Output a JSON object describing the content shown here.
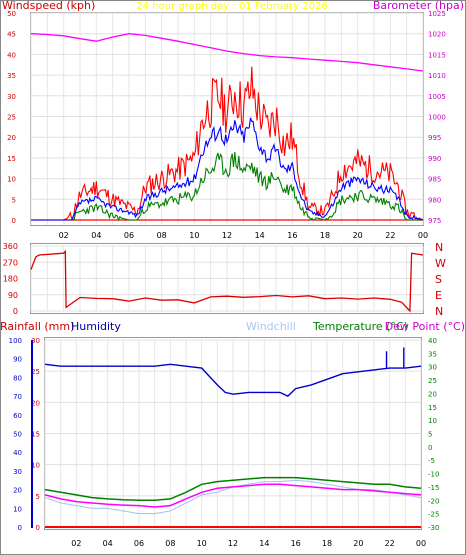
{
  "colors": {
    "wind_high": "#ff0000",
    "wind_avg": "#008000",
    "wind_overall": "#0000ff",
    "barometer": "#ff00ff",
    "direction": "#dd0000",
    "humidity": "#0000cc",
    "temperature": "#008000",
    "dewpoint": "#ff00ff",
    "windchill": "#a8c8f0",
    "rainfall": "#ff0000",
    "title": "#ffff00"
  },
  "chart_data": [
    {
      "type": "line",
      "title": "24 hour graph day : 01 February 2026",
      "left_label": "Windspeed (kph)",
      "right_label": "Barometer (hpa)",
      "x_ticks": [
        "02",
        "04",
        "06",
        "08",
        "10",
        "12",
        "14",
        "16",
        "18",
        "20",
        "22",
        "00"
      ],
      "y_left_ticks": [
        "0",
        "5",
        "10",
        "15",
        "20",
        "25",
        "30",
        "35",
        "40",
        "45",
        "50"
      ],
      "y_left_range": [
        0,
        50
      ],
      "y_right_ticks": [
        "975",
        "980",
        "985",
        "990",
        "995",
        "1000",
        "1005",
        "1010",
        "1015",
        "1020",
        "1025"
      ],
      "y_right_range": [
        975,
        1025
      ],
      "grid": true,
      "series": [
        {
          "key": "gust",
          "x": [
            0,
            1,
            2,
            2.5,
            3,
            4,
            5,
            6,
            6.5,
            7,
            8,
            9,
            10,
            10.5,
            11,
            11.5,
            12,
            12.5,
            13,
            13.5,
            14,
            14.5,
            15,
            15.5,
            16,
            16.5,
            17,
            18,
            18.5,
            19,
            20,
            21,
            22,
            22.5,
            23,
            24
          ],
          "values": [
            0,
            0,
            0,
            1,
            6,
            8,
            5,
            3,
            2,
            8,
            10,
            12,
            15,
            24,
            28,
            30,
            26,
            31,
            27,
            32,
            26,
            22,
            25,
            18,
            20,
            10,
            3,
            2,
            6,
            12,
            14,
            12,
            11,
            8,
            2,
            0
          ]
        },
        {
          "key": "avg",
          "x": [
            0,
            1,
            2,
            2.5,
            3,
            4,
            5,
            6,
            6.5,
            7,
            8,
            9,
            10,
            10.5,
            11,
            11.5,
            12,
            12.5,
            13,
            13.5,
            14,
            14.5,
            15,
            15.5,
            16,
            16.5,
            17,
            18,
            18.5,
            19,
            20,
            21,
            22,
            22.5,
            23,
            24
          ],
          "values": [
            0,
            0,
            0,
            0,
            2,
            3,
            1,
            0,
            0,
            3,
            4,
            5,
            6,
            10,
            12,
            14,
            12,
            15,
            12,
            13,
            10,
            9,
            11,
            7,
            8,
            3,
            1,
            0,
            2,
            5,
            6,
            5,
            4,
            3,
            0,
            0
          ]
        },
        {
          "key": "overall",
          "x": [
            0,
            1,
            2,
            2.5,
            3,
            4,
            5,
            6,
            6.5,
            7,
            8,
            9,
            10,
            10.5,
            11,
            11.5,
            12,
            12.5,
            13,
            13.5,
            14,
            14.5,
            15,
            15.5,
            16,
            16.5,
            17,
            18,
            18.5,
            19,
            20,
            21,
            22,
            22.5,
            23,
            24
          ],
          "values": [
            0,
            0,
            0,
            0,
            4,
            5,
            3,
            2,
            1,
            5,
            7,
            8,
            10,
            17,
            20,
            22,
            19,
            23,
            20,
            24,
            18,
            15,
            17,
            12,
            13,
            6,
            2,
            1,
            4,
            8,
            10,
            8,
            7,
            5,
            1,
            0
          ]
        },
        {
          "key": "barometer",
          "x": [
            0,
            1,
            2,
            3,
            4,
            5,
            6,
            7,
            8,
            9,
            10,
            11,
            12,
            13,
            14,
            15,
            16,
            17,
            18,
            19,
            20,
            21,
            22,
            23,
            24
          ],
          "values": [
            1020,
            1019.8,
            1019.5,
            1018.8,
            1018.2,
            1019.2,
            1020,
            1019.6,
            1018.9,
            1018.2,
            1017.4,
            1016.6,
            1015.8,
            1015.2,
            1014.7,
            1014.4,
            1014.2,
            1013.9,
            1013.6,
            1013.3,
            1013,
            1012.5,
            1012,
            1011.5,
            1011
          ]
        }
      ]
    },
    {
      "type": "line",
      "y_ticks": [
        "0",
        "90",
        "180",
        "270",
        "360"
      ],
      "y_range": [
        0,
        360
      ],
      "compass": [
        "N",
        "W",
        "S",
        "E",
        "N"
      ],
      "series": [
        {
          "key": "direction",
          "x": [
            0,
            0.3,
            0.5,
            2,
            2.1,
            2.15,
            3,
            4,
            5,
            6,
            7,
            8,
            9,
            10,
            11,
            12,
            13,
            14,
            15,
            16,
            17,
            18,
            19,
            20,
            21,
            22,
            22.7,
            23.2,
            23.3,
            24
          ],
          "values": [
            230,
            300,
            310,
            320,
            330,
            20,
            75,
            70,
            68,
            55,
            72,
            60,
            62,
            45,
            78,
            82,
            76,
            80,
            86,
            78,
            84,
            68,
            72,
            66,
            72,
            65,
            48,
            0,
            320,
            310
          ]
        }
      ]
    },
    {
      "type": "line",
      "labels": {
        "rainfall": "Rainfall (mm)",
        "humidity": "Humidity",
        "windchill": "Windchill",
        "temperature": "Temperature (°C)",
        "dewpoint": "Dew Point (°C)"
      },
      "x_ticks": [
        "02",
        "04",
        "06",
        "08",
        "10",
        "12",
        "14",
        "16",
        "18",
        "20",
        "22",
        "00"
      ],
      "humidity_ticks": [
        "0",
        "10",
        "20",
        "30",
        "40",
        "50",
        "60",
        "70",
        "80",
        "90",
        "100"
      ],
      "humidity_range": [
        0,
        100
      ],
      "rain_ticks": [
        "0",
        "5",
        "10",
        "15",
        "20",
        "25",
        "30"
      ],
      "rain_range": [
        0,
        30
      ],
      "temp_ticks": [
        "40",
        "35",
        "30",
        "25",
        "20",
        "15",
        "10",
        "5",
        "0",
        "-5",
        "-10",
        "-15",
        "-20",
        "-25",
        "-30"
      ],
      "temp_range": [
        -30,
        40
      ],
      "series": [
        {
          "key": "humidity",
          "x": [
            0,
            1,
            2,
            3,
            4,
            5,
            6,
            7,
            8,
            9,
            10,
            11,
            11.5,
            12,
            13,
            14,
            15,
            15.5,
            16,
            17,
            18,
            19,
            20,
            21,
            22,
            23,
            24
          ],
          "values": [
            87,
            86,
            86,
            86,
            86,
            86,
            86,
            86,
            87,
            86,
            85,
            76,
            72,
            71,
            72,
            72,
            72,
            70,
            74,
            76,
            79,
            82,
            83,
            84,
            85,
            85,
            86
          ]
        },
        {
          "key": "temperature",
          "x": [
            0,
            1,
            2,
            3,
            4,
            5,
            6,
            7,
            8,
            9,
            10,
            11,
            12,
            13,
            14,
            15,
            16,
            17,
            18,
            19,
            20,
            21,
            22,
            23,
            24
          ],
          "values": [
            -16,
            -17,
            -18,
            -19,
            -19.5,
            -19.8,
            -20,
            -20,
            -19.5,
            -17,
            -14,
            -13,
            -12.5,
            -12,
            -11.5,
            -11.5,
            -11.5,
            -12,
            -12.5,
            -13,
            -13.5,
            -14,
            -14,
            -15,
            -15.5
          ]
        },
        {
          "key": "dewpoint",
          "x": [
            0,
            1,
            2,
            3,
            4,
            5,
            6,
            7,
            8,
            9,
            10,
            11,
            12,
            13,
            14,
            15,
            16,
            17,
            18,
            19,
            20,
            21,
            22,
            23,
            24
          ],
          "values": [
            -18,
            -19.5,
            -20.5,
            -21,
            -21.5,
            -21.8,
            -22,
            -22.5,
            -22,
            -19.5,
            -17,
            -15.5,
            -15,
            -14.5,
            -14,
            -14,
            -14.5,
            -15,
            -15.5,
            -16,
            -16,
            -16.5,
            -17,
            -17.5,
            -18
          ]
        },
        {
          "key": "windchill",
          "x": [
            0,
            1,
            2,
            3,
            4,
            5,
            6,
            7,
            8,
            9,
            10,
            11,
            12,
            13,
            14,
            15,
            16,
            17,
            18,
            19,
            20,
            21,
            22,
            23,
            24
          ],
          "values": [
            -19,
            -21,
            -22,
            -23,
            -23,
            -24,
            -25,
            -25,
            -24,
            -21,
            -18,
            -17,
            -15,
            -14,
            -13,
            -13,
            -12.5,
            -13,
            -14,
            -15,
            -16,
            -16,
            -17,
            -18,
            -19
          ]
        },
        {
          "key": "rainfall",
          "x": [
            0,
            24
          ],
          "values": [
            0,
            0
          ]
        }
      ]
    }
  ]
}
